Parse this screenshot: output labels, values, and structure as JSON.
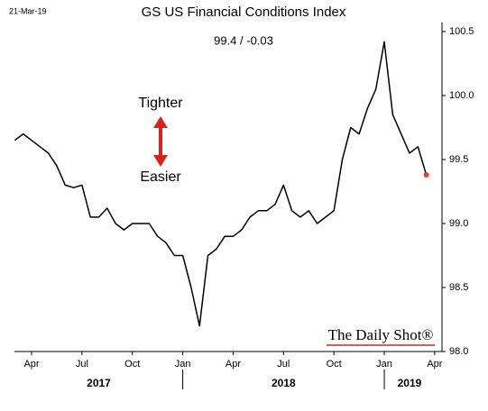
{
  "chart_data": {
    "type": "line",
    "date_label": "21-Mar-19",
    "title": "GS US Financial Conditions Index",
    "subtitle": "99.4  /  -0.03",
    "annotations": [
      "Tighter",
      "Easier"
    ],
    "watermark": "The Daily Shot®",
    "categories": [
      null,
      null,
      "Apr",
      null,
      null,
      null,
      null,
      null,
      "Jul",
      null,
      null,
      null,
      null,
      null,
      "Oct",
      null,
      null,
      null,
      null,
      null,
      "Jan",
      null,
      null,
      null,
      null,
      null,
      "Apr",
      null,
      null,
      null,
      null,
      null,
      "Jul",
      null,
      null,
      null,
      null,
      null,
      "Oct",
      null,
      null,
      null,
      null,
      null,
      "Jan",
      null,
      null,
      null,
      null,
      null,
      "Apr"
    ],
    "x_groups": [
      "2017",
      "2018",
      "2019"
    ],
    "series": [
      {
        "name": "GS US Financial Conditions Index",
        "color": "#000000",
        "values": [
          99.65,
          99.7,
          99.65,
          99.6,
          99.55,
          99.45,
          99.3,
          99.28,
          99.3,
          99.05,
          99.05,
          99.12,
          99.0,
          98.95,
          99.0,
          99.0,
          99.0,
          98.9,
          98.85,
          98.75,
          98.75,
          98.5,
          98.2,
          98.75,
          98.8,
          98.9,
          98.9,
          98.95,
          99.05,
          99.1,
          99.1,
          99.15,
          99.3,
          99.1,
          99.05,
          99.1,
          99.0,
          99.05,
          99.1,
          99.5,
          99.75,
          99.7,
          99.9,
          100.05,
          100.42,
          99.85,
          99.7,
          99.55,
          99.6,
          99.38,
          null
        ]
      }
    ],
    "last_point_color": "#e8403a",
    "ylim": [
      98,
      100.5
    ],
    "yticks": [
      {
        "value": 98,
        "label": "98.0"
      },
      98.5,
      {
        "value": 99,
        "label": "99.0"
      },
      99.5,
      {
        "value": 100,
        "label": "100.0"
      },
      100.5
    ]
  }
}
